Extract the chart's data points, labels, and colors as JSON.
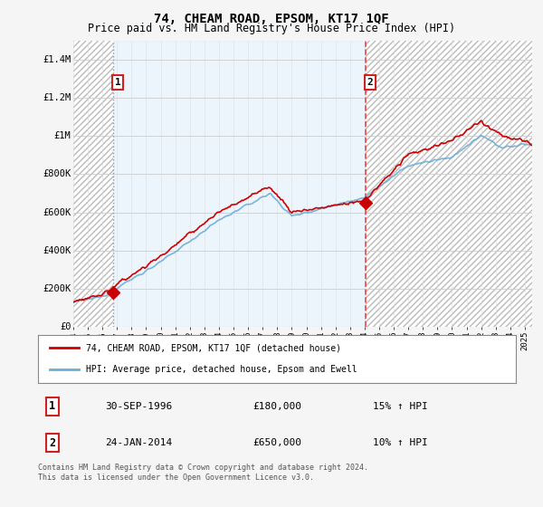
{
  "title": "74, CHEAM ROAD, EPSOM, KT17 1QF",
  "subtitle": "Price paid vs. HM Land Registry's House Price Index (HPI)",
  "hpi_color": "#6baed6",
  "price_color": "#cc0000",
  "sale1_dashed_color": "#aaaaaa",
  "sale2_dashed_color": "#ee4444",
  "hatch_color": "#cccccc",
  "mid_bg_color": "#ddeeff",
  "plot_bg_color": "#ffffff",
  "fig_bg_color": "#f5f5f5",
  "ylim": [
    0,
    1500000
  ],
  "yticks": [
    0,
    200000,
    400000,
    600000,
    800000,
    1000000,
    1200000,
    1400000
  ],
  "ytick_labels": [
    "£0",
    "£200K",
    "£400K",
    "£600K",
    "£800K",
    "£1M",
    "£1.2M",
    "£1.4M"
  ],
  "xmin": 1994.0,
  "xmax": 2025.5,
  "sale1_date": 1996.75,
  "sale1_price": 180000,
  "sale2_date": 2014.07,
  "sale2_price": 650000,
  "legend_label1": "74, CHEAM ROAD, EPSOM, KT17 1QF (detached house)",
  "legend_label2": "HPI: Average price, detached house, Epsom and Ewell",
  "annotation1_date": "30-SEP-1996",
  "annotation1_price": "£180,000",
  "annotation1_hpi": "15% ↑ HPI",
  "annotation2_date": "24-JAN-2014",
  "annotation2_price": "£650,000",
  "annotation2_hpi": "10% ↑ HPI",
  "footer": "Contains HM Land Registry data © Crown copyright and database right 2024.\nThis data is licensed under the Open Government Licence v3.0."
}
